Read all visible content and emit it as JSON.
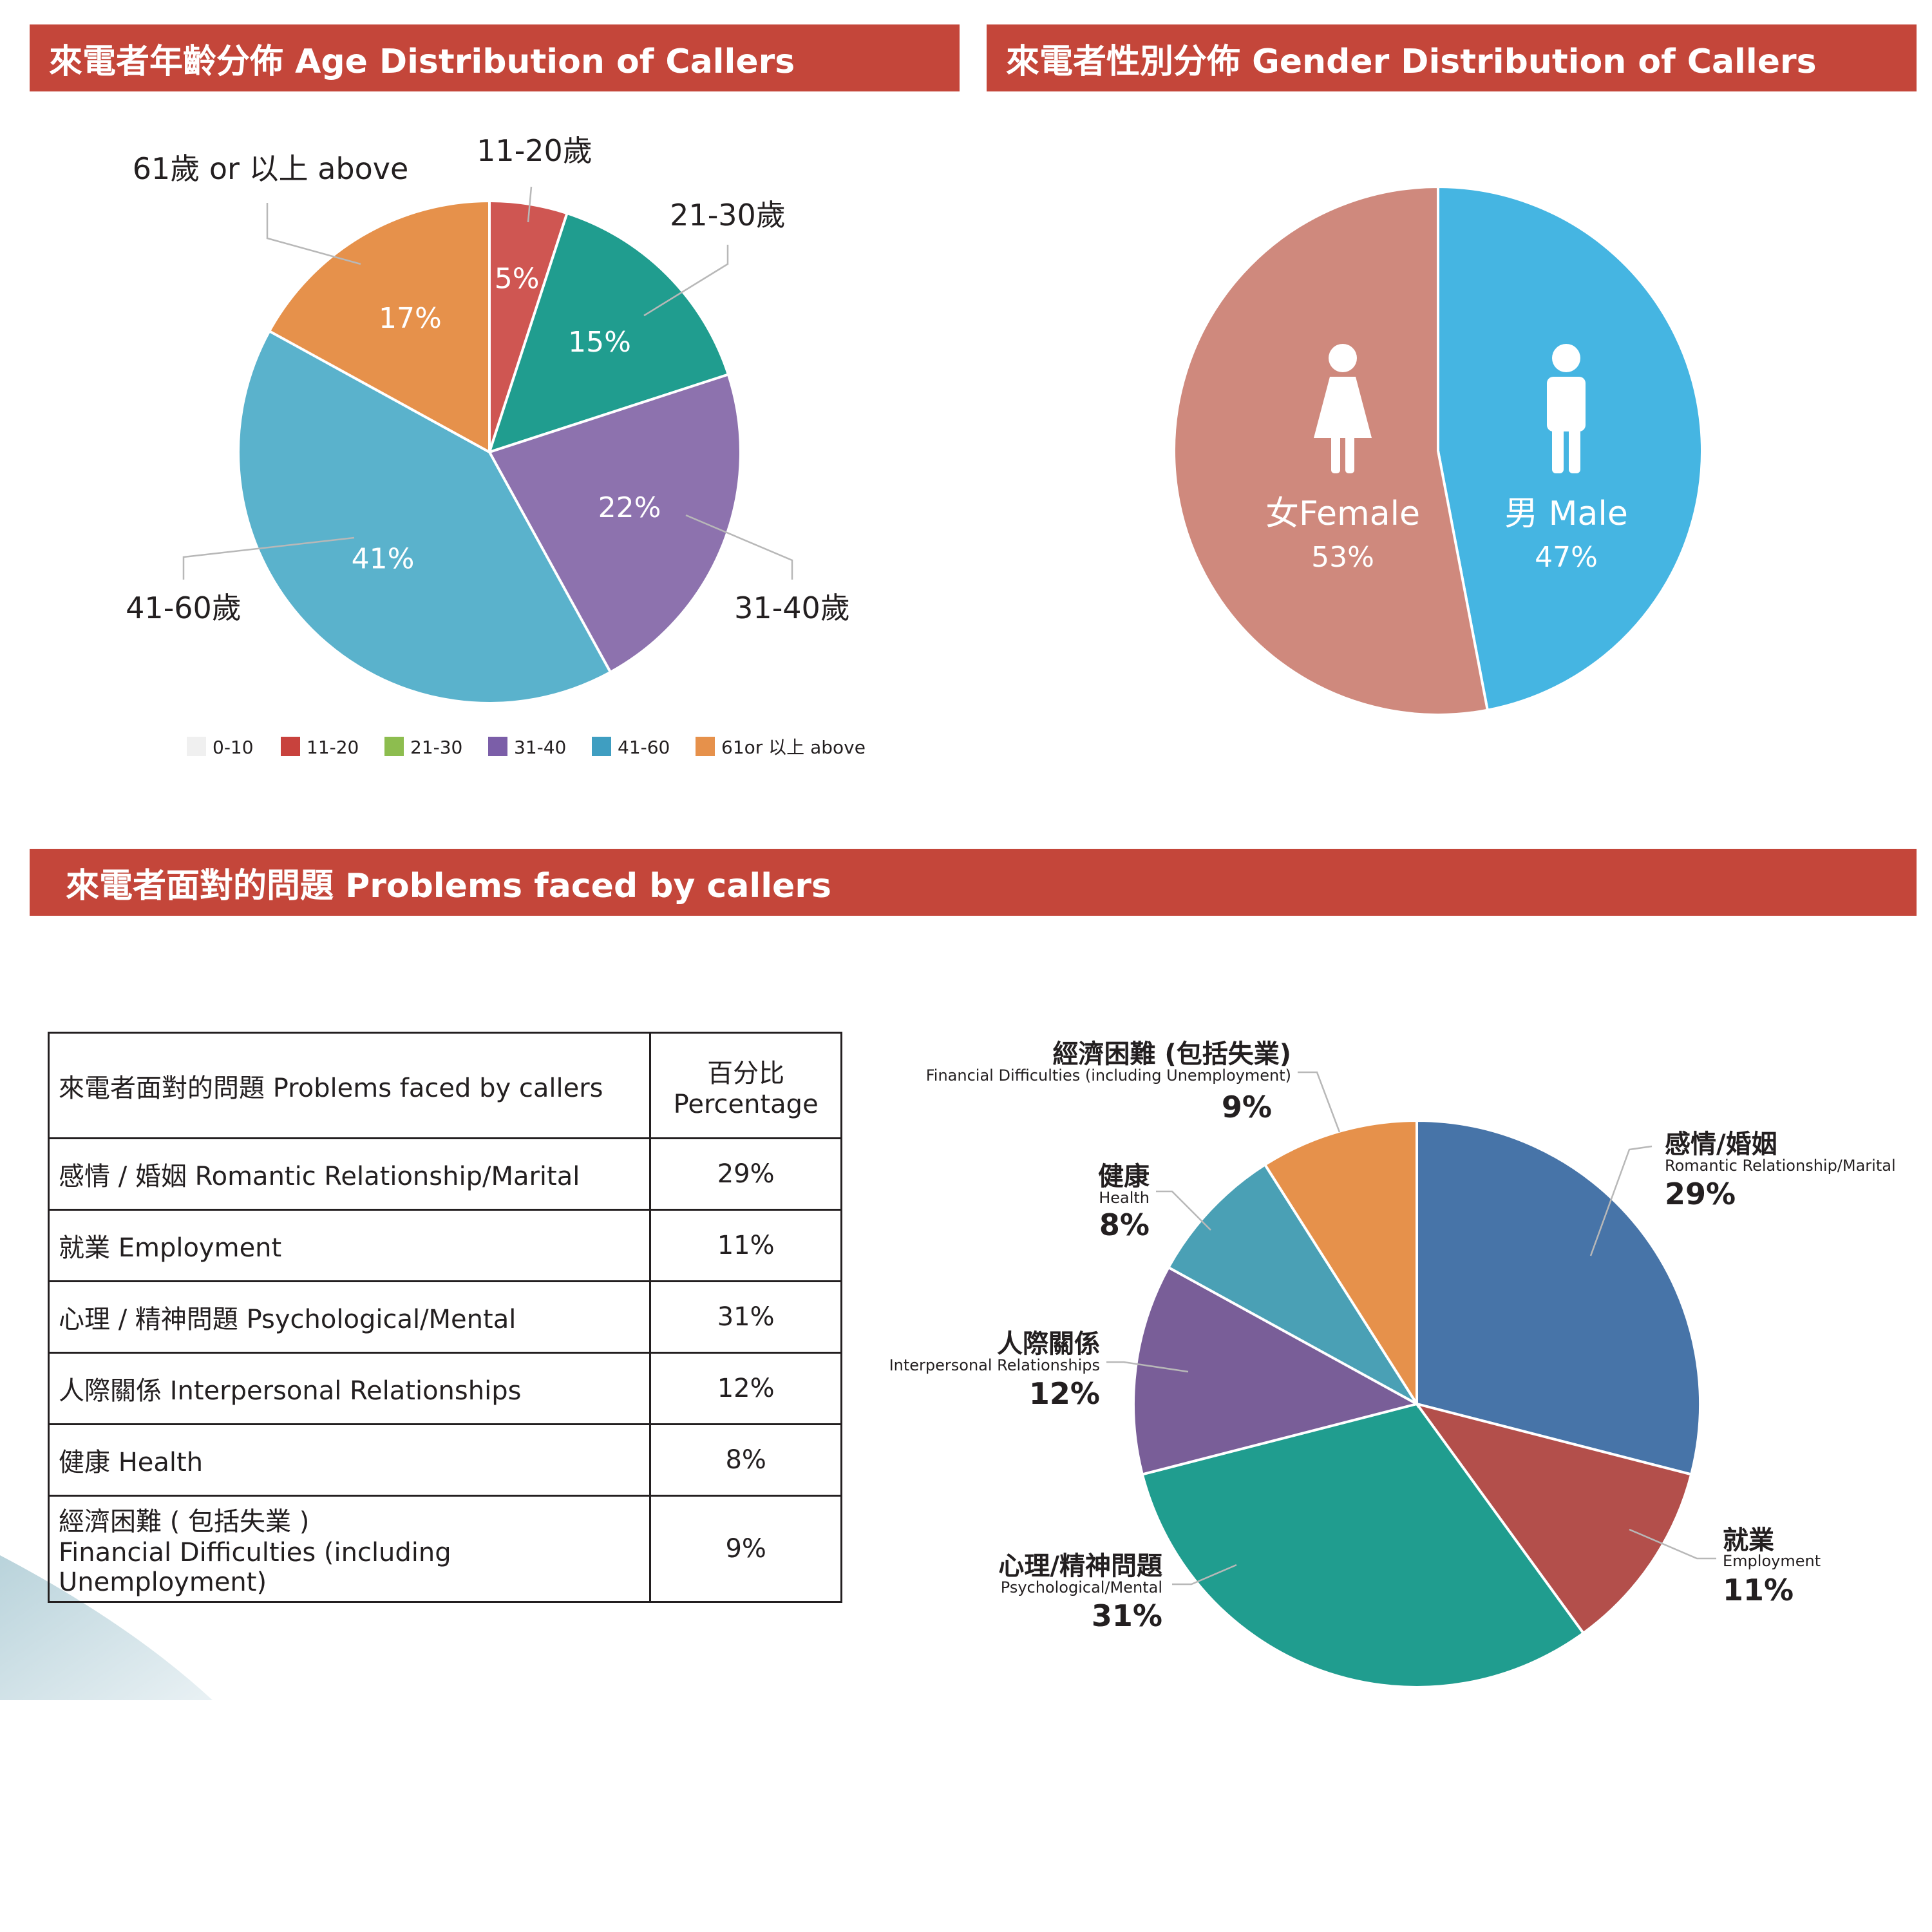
{
  "sections": {
    "age_title": "來電者年齡分佈 Age Distribution of Callers",
    "gender_title": "來電者性別分佈 Gender Distribution of Callers",
    "problems_title": "來電者面對的問題 Problems faced by callers"
  },
  "table": {
    "header_category": "來電者面對的問題 Problems faced by callers",
    "header_percentage_line1": "百分比",
    "header_percentage_line2": "Percentage",
    "rows": [
      {
        "category": "感情 / 婚姻 Romantic Relationship/Marital",
        "percentage": "29%"
      },
      {
        "category": "就業 Employment",
        "percentage": "11%"
      },
      {
        "category": "心理 / 精神問題 Psychological/Mental",
        "percentage": "31%"
      },
      {
        "category": "人際關係 Interpersonal Relationships",
        "percentage": "12%"
      },
      {
        "category": "健康 Health",
        "percentage": "8%"
      },
      {
        "category": "經濟困難 ( 包括失業 )",
        "category_line2": "Financial Difficulties (including Unemployment)",
        "percentage": "9%"
      }
    ]
  },
  "chart_data": [
    {
      "type": "pie",
      "title": "來電者年齡分佈 Age Distribution of Callers",
      "start": "top",
      "direction": "clockwise",
      "slices": [
        {
          "label": "11-20歲",
          "value": 5,
          "display": "5%",
          "color": "#cf5652"
        },
        {
          "label": "21-30歲",
          "value": 15,
          "display": "15%",
          "color": "#209d8f"
        },
        {
          "label": "31-40歲",
          "value": 22,
          "display": "22%",
          "color": "#8d72ae"
        },
        {
          "label": "41-60歲",
          "value": 41,
          "display": "41%",
          "color": "#5ab2cc"
        },
        {
          "label": "61歲 or 以上 above",
          "value": 17,
          "display": "17%",
          "color": "#e6914b"
        }
      ],
      "legend_position": "bottom",
      "legend": [
        {
          "label": "0-10",
          "color": "#f0f0f0"
        },
        {
          "label": "11-20",
          "color": "#c8423d"
        },
        {
          "label": "21-30",
          "color": "#8dbd4f"
        },
        {
          "label": "31-40",
          "color": "#7b5ea8"
        },
        {
          "label": "41-60",
          "color": "#3f9ec1"
        },
        {
          "label": "61or 以上 above",
          "color": "#e6914b"
        }
      ]
    },
    {
      "type": "pie",
      "title": "來電者性別分佈 Gender Distribution of Callers",
      "start": "top",
      "direction": "clockwise",
      "slices": [
        {
          "label": "男 Male",
          "value": 47,
          "display": "47%",
          "color": "#45b5e2",
          "icon": "male-person-icon"
        },
        {
          "label": "女Female",
          "value": 53,
          "display": "53%",
          "color": "#cf897d",
          "icon": "female-person-icon"
        }
      ]
    },
    {
      "type": "pie",
      "title": "來電者面對的問題 Problems faced by callers",
      "start": "top",
      "direction": "clockwise",
      "slices": [
        {
          "label_zh": "感情/婚姻",
          "label_en": "Romantic Relationship/Marital",
          "value": 29,
          "display": "29%",
          "color": "#4774a8"
        },
        {
          "label_zh": "就業",
          "label_en": "Employment",
          "value": 11,
          "display": "11%",
          "color": "#b34f4b"
        },
        {
          "label_zh": "心理/精神問題",
          "label_en": "Psychological/Mental",
          "value": 31,
          "display": "31%",
          "color": "#209d8f"
        },
        {
          "label_zh": "人際關係",
          "label_en": "Interpersonal Relationships",
          "value": 12,
          "display": "12%",
          "color": "#795e98"
        },
        {
          "label_zh": "健康",
          "label_en": "Health",
          "value": 8,
          "display": "8%",
          "color": "#4aa0b5"
        },
        {
          "label_zh": "經濟困難 (包括失業)",
          "label_en": "Financial Difficulties (including Unemployment)",
          "value": 9,
          "display": "9%",
          "color": "#e6914b"
        }
      ]
    }
  ]
}
